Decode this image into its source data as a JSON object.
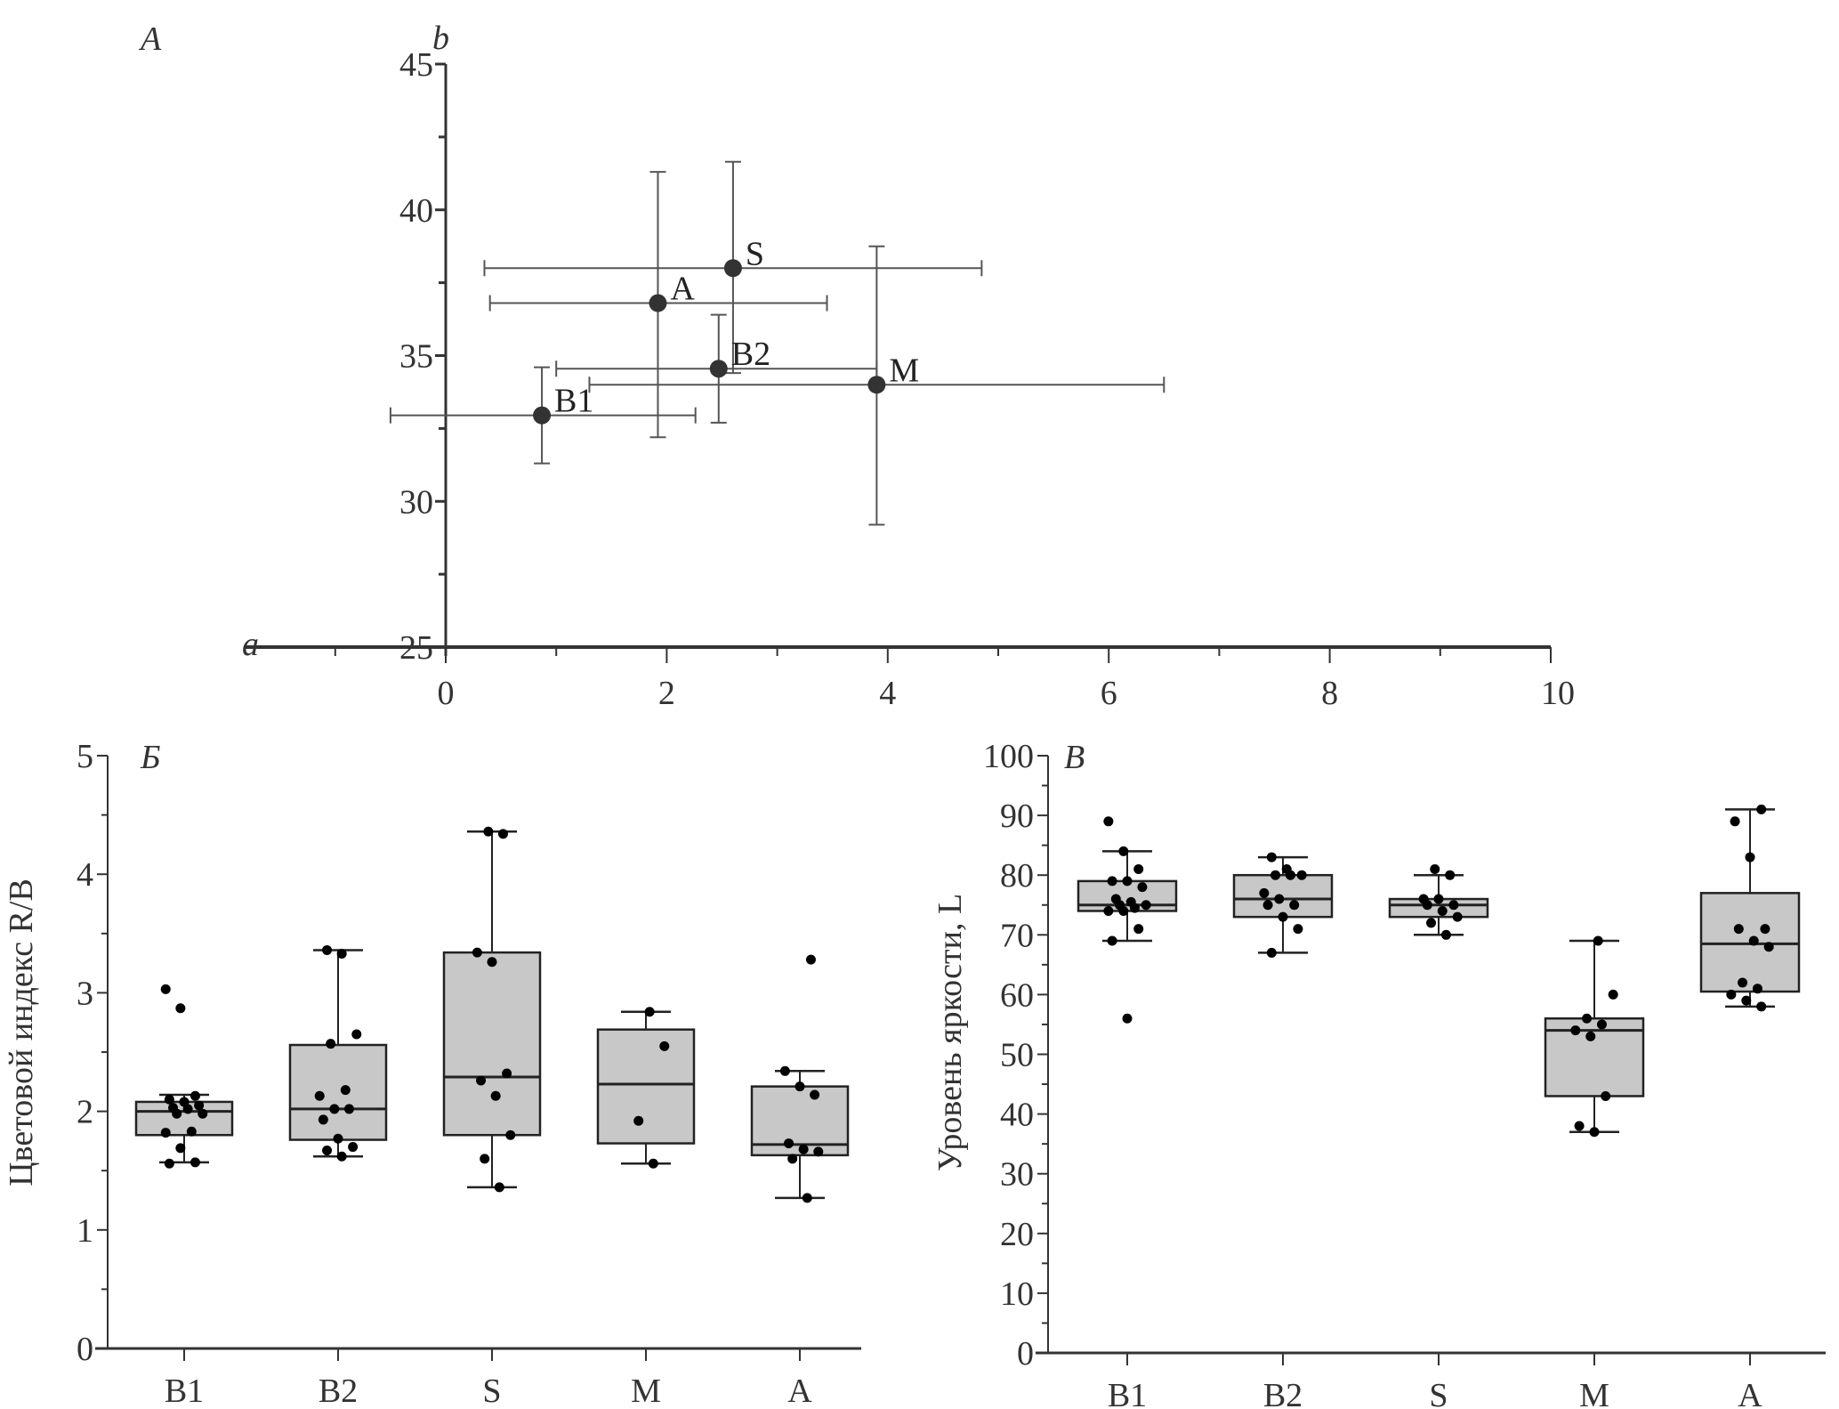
{
  "chart_data": [
    {
      "id": "A",
      "type": "scatter",
      "panel_label": "A",
      "title": "",
      "xlabel": "a",
      "ylabel": "b",
      "xlim": [
        -1.9,
        10
      ],
      "ylim": [
        25,
        45
      ],
      "x_ticks": [
        0,
        2,
        4,
        6,
        8,
        10
      ],
      "x_minor_ticks": [
        -1,
        1,
        3,
        5,
        7,
        9
      ],
      "y_ticks": [
        25,
        30,
        35,
        40,
        45
      ],
      "y_minor_ticks": [
        27.5,
        32.5,
        37.5,
        42.5
      ],
      "grid": false,
      "points": [
        {
          "label": "B1",
          "x": 0.87,
          "y": 32.95,
          "x_err": [
            -0.5,
            2.26
          ],
          "y_err": [
            31.3,
            34.6
          ]
        },
        {
          "label": "A",
          "x": 1.92,
          "y": 36.8,
          "x_err": [
            0.4,
            3.45
          ],
          "y_err": [
            32.2,
            41.3
          ]
        },
        {
          "label": "S",
          "x": 2.6,
          "y": 38.0,
          "x_err": [
            0.35,
            4.85
          ],
          "y_err": [
            34.4,
            41.65
          ]
        },
        {
          "label": "B2",
          "x": 2.47,
          "y": 34.55,
          "x_err": [
            1.0,
            3.9
          ],
          "y_err": [
            32.7,
            36.4
          ]
        },
        {
          "label": "M",
          "x": 3.9,
          "y": 34.0,
          "x_err": [
            1.3,
            6.5
          ],
          "y_err": [
            29.2,
            38.75
          ]
        }
      ]
    },
    {
      "id": "B",
      "type": "box",
      "panel_label": "Б",
      "title": "",
      "xlabel": "",
      "ylabel": "Цветовой индекс R/B",
      "ylim": [
        0,
        5
      ],
      "y_ticks": [
        0,
        1,
        2,
        3,
        4,
        5
      ],
      "y_minor_ticks": [
        0.5,
        1.5,
        2.5,
        3.5,
        4.5
      ],
      "grid": false,
      "categories": [
        "B1",
        "B2",
        "S",
        "M",
        "A"
      ],
      "boxes": [
        {
          "name": "B1",
          "whisker_low": 1.57,
          "q1": 1.8,
          "median": 2.0,
          "q3": 2.08,
          "whisker_high": 2.14,
          "points": [
            3.03,
            2.87,
            2.13,
            2.1,
            2.08,
            2.05,
            2.03,
            2.02,
            1.98,
            1.98,
            1.83,
            1.82,
            1.69,
            1.57,
            1.56
          ]
        },
        {
          "name": "B2",
          "whisker_low": 1.62,
          "q1": 1.76,
          "median": 2.02,
          "q3": 2.56,
          "whisker_high": 3.36,
          "points": [
            3.36,
            3.33,
            2.65,
            2.57,
            2.18,
            2.13,
            2.02,
            2.02,
            1.93,
            1.77,
            1.7,
            1.67,
            1.62
          ]
        },
        {
          "name": "S",
          "whisker_low": 1.36,
          "q1": 1.8,
          "median": 2.29,
          "q3": 3.34,
          "whisker_high": 4.36,
          "points": [
            4.36,
            4.34,
            3.34,
            3.26,
            2.32,
            2.26,
            2.13,
            1.8,
            1.6,
            1.36
          ]
        },
        {
          "name": "M",
          "whisker_low": 1.56,
          "q1": 1.73,
          "median": 2.23,
          "q3": 2.69,
          "whisker_high": 2.84,
          "points": [
            2.84,
            2.55,
            1.92,
            1.56
          ]
        },
        {
          "name": "A",
          "whisker_low": 1.27,
          "q1": 1.63,
          "median": 1.72,
          "q3": 2.21,
          "whisker_high": 2.34,
          "points": [
            3.28,
            2.34,
            2.21,
            2.14,
            1.73,
            1.68,
            1.66,
            1.6,
            1.27
          ]
        }
      ]
    },
    {
      "id": "C",
      "type": "box",
      "panel_label": "В",
      "title": "",
      "xlabel": "",
      "ylabel": "Уровень яркости, L",
      "ylim": [
        0,
        100
      ],
      "y_ticks": [
        0,
        10,
        20,
        30,
        40,
        50,
        60,
        70,
        80,
        90,
        100
      ],
      "y_minor_ticks": [
        5,
        15,
        25,
        35,
        45,
        55,
        65,
        75,
        85,
        95
      ],
      "grid": false,
      "categories": [
        "B1",
        "B2",
        "S",
        "M",
        "A"
      ],
      "boxes": [
        {
          "name": "B1",
          "whisker_low": 69,
          "q1": 74,
          "median": 75,
          "q3": 79,
          "whisker_high": 84,
          "points": [
            89,
            84,
            81,
            79,
            79,
            78,
            76,
            75.5,
            75,
            75,
            74.5,
            74,
            74,
            71,
            69,
            56
          ]
        },
        {
          "name": "B2",
          "whisker_low": 67,
          "q1": 73,
          "median": 76,
          "q3": 80,
          "whisker_high": 83,
          "points": [
            83,
            81,
            80,
            80,
            80,
            77,
            76,
            75,
            75,
            73,
            71,
            67
          ]
        },
        {
          "name": "S",
          "whisker_low": 70,
          "q1": 73,
          "median": 75,
          "q3": 76,
          "whisker_high": 80,
          "points": [
            81,
            80,
            76,
            76,
            75,
            75,
            74,
            73,
            72,
            70
          ]
        },
        {
          "name": "M",
          "whisker_low": 37,
          "q1": 43,
          "median": 54,
          "q3": 56,
          "whisker_high": 69,
          "points": [
            69,
            60,
            56,
            55,
            54,
            53,
            43,
            38,
            37
          ]
        },
        {
          "name": "A",
          "whisker_low": 58,
          "q1": 60.5,
          "median": 68.5,
          "q3": 77,
          "whisker_high": 91,
          "points": [
            91,
            89,
            83,
            71,
            71,
            69,
            68,
            62,
            61,
            60,
            59,
            58
          ]
        }
      ]
    }
  ],
  "colors": {
    "axis": "#333333",
    "box_fill": "#c8c8c8",
    "box_stroke": "#222222",
    "point": "#000000",
    "errorbar": "#555555",
    "scatter_point": "#333333"
  }
}
